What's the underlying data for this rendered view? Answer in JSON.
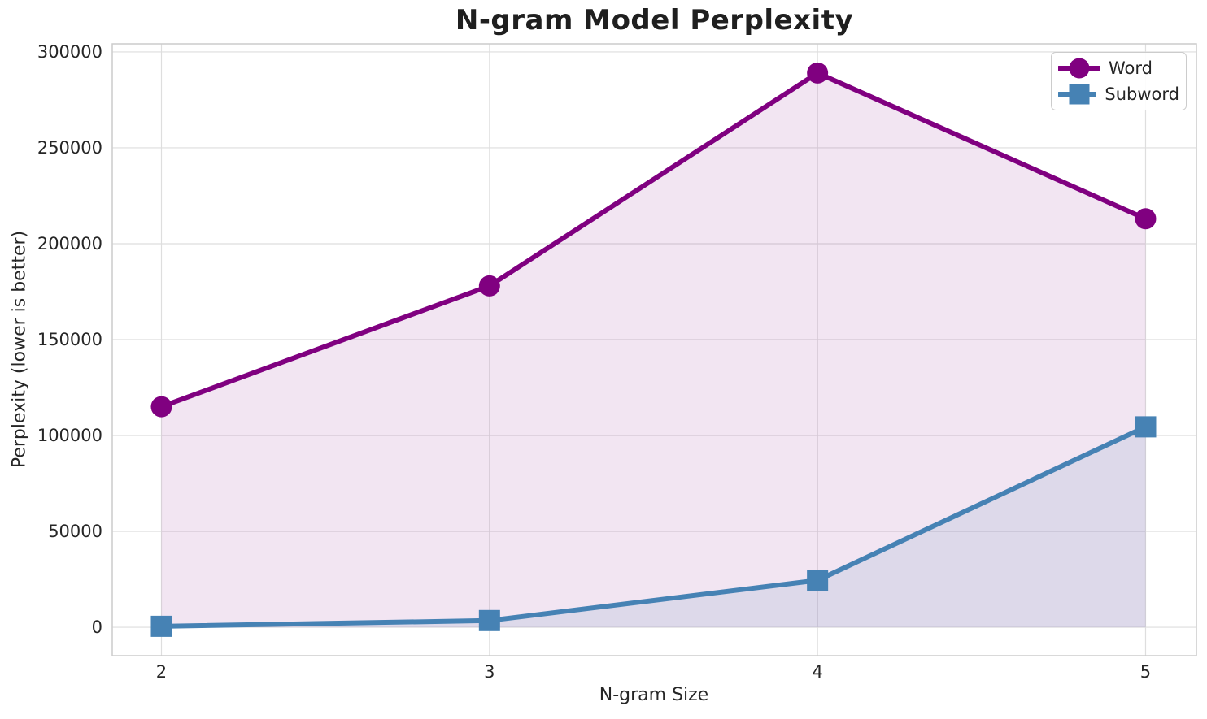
{
  "figure": {
    "title": "N-gram Model Perplexity",
    "xlabel": "N-gram Size",
    "ylabel": "Perplexity (lower is better)"
  },
  "colors": {
    "background": "#FFFFFF",
    "grid": "#DEDEDE",
    "spine": "#CCCCCC",
    "text": "#262626",
    "word": "#800080",
    "subword": "#4682B4"
  },
  "chart_data": {
    "type": "line",
    "title": "N-gram Model Perplexity",
    "xlabel": "N-gram Size",
    "ylabel": "Perplexity (lower is better)",
    "x": [
      2,
      3,
      4,
      5
    ],
    "xtick_labels": [
      "2",
      "3",
      "4",
      "5"
    ],
    "yticks": [
      0,
      50000,
      100000,
      150000,
      200000,
      250000,
      300000
    ],
    "ytick_labels": [
      "0",
      "50000",
      "100000",
      "150000",
      "200000",
      "250000",
      "300000"
    ],
    "xlim": [
      1.85,
      5.155
    ],
    "ylim": [
      -14800,
      304200
    ],
    "grid": true,
    "area_fill": true,
    "legend_position": "upper right",
    "series": [
      {
        "name": "Word",
        "marker": "circle",
        "color": "#800080",
        "fill_alpha": 0.1,
        "values": [
          115000,
          178000,
          289000,
          213000
        ]
      },
      {
        "name": "Subword",
        "marker": "square",
        "color": "#4682B4",
        "fill_alpha": 0.12,
        "values": [
          500,
          3500,
          24500,
          104500
        ]
      }
    ]
  }
}
